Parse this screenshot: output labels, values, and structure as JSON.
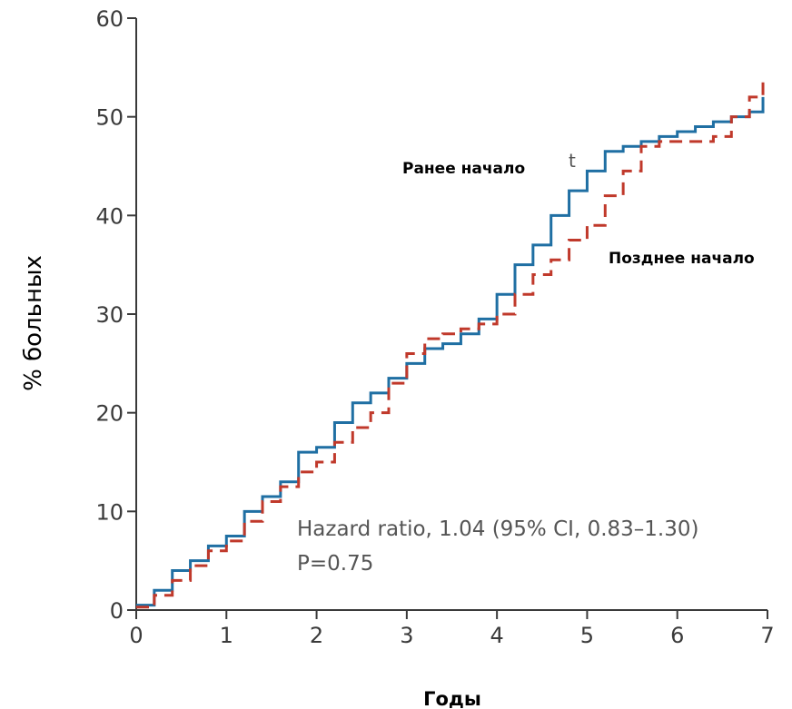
{
  "chart_data": {
    "type": "line",
    "title": "",
    "xlabel": "Годы",
    "ylabel": "% больных",
    "xlim": [
      0,
      7
    ],
    "ylim": [
      0,
      60
    ],
    "x_ticks": [
      "0",
      "1",
      "2",
      "3",
      "4",
      "5",
      "6",
      "7"
    ],
    "y_ticks": [
      "0",
      "10",
      "20",
      "30",
      "40",
      "50",
      "60"
    ],
    "grid": false,
    "series": [
      {
        "name": "Ранее начало",
        "color": "#1f6fa3",
        "style": "solid",
        "x": [
          0,
          0.2,
          0.4,
          0.6,
          0.8,
          1.0,
          1.2,
          1.4,
          1.6,
          1.8,
          2.0,
          2.2,
          2.4,
          2.6,
          2.8,
          3.0,
          3.2,
          3.4,
          3.6,
          3.8,
          4.0,
          4.2,
          4.4,
          4.6,
          4.8,
          5.0,
          5.2,
          5.4,
          5.6,
          5.8,
          6.0,
          6.2,
          6.4,
          6.6,
          6.8,
          6.95
        ],
        "y": [
          0.5,
          2.0,
          4.0,
          5.0,
          6.5,
          7.5,
          10.0,
          11.5,
          13.0,
          16.0,
          16.5,
          19.0,
          21.0,
          22.0,
          23.5,
          25.0,
          26.5,
          27.0,
          28.0,
          29.5,
          32.0,
          35.0,
          37.0,
          40.0,
          42.5,
          44.5,
          46.5,
          47.0,
          47.5,
          48.0,
          48.5,
          49.0,
          49.5,
          50.0,
          50.5,
          52.0
        ]
      },
      {
        "name": "Позднее начало",
        "color": "#c0392b",
        "style": "dashed",
        "x": [
          0,
          0.2,
          0.4,
          0.6,
          0.8,
          1.0,
          1.2,
          1.4,
          1.6,
          1.8,
          2.0,
          2.2,
          2.4,
          2.6,
          2.8,
          3.0,
          3.2,
          3.4,
          3.6,
          3.8,
          4.0,
          4.2,
          4.4,
          4.6,
          4.8,
          5.0,
          5.2,
          5.4,
          5.6,
          5.8,
          6.0,
          6.2,
          6.4,
          6.6,
          6.8,
          6.95
        ],
        "y": [
          0.3,
          1.5,
          3.0,
          4.5,
          6.0,
          7.0,
          9.0,
          11.0,
          12.5,
          14.0,
          15.0,
          17.0,
          18.5,
          20.0,
          23.0,
          26.0,
          27.5,
          28.0,
          28.5,
          29.0,
          30.0,
          32.0,
          34.0,
          35.5,
          37.5,
          39.0,
          42.0,
          44.5,
          47.0,
          47.5,
          47.5,
          47.5,
          48.0,
          50.0,
          52.0,
          54.0
        ]
      }
    ],
    "annotations": [
      "Hazard ratio, 1.04 (95% CI, 0.83–1.30)",
      "P=0.75",
      "t"
    ]
  }
}
